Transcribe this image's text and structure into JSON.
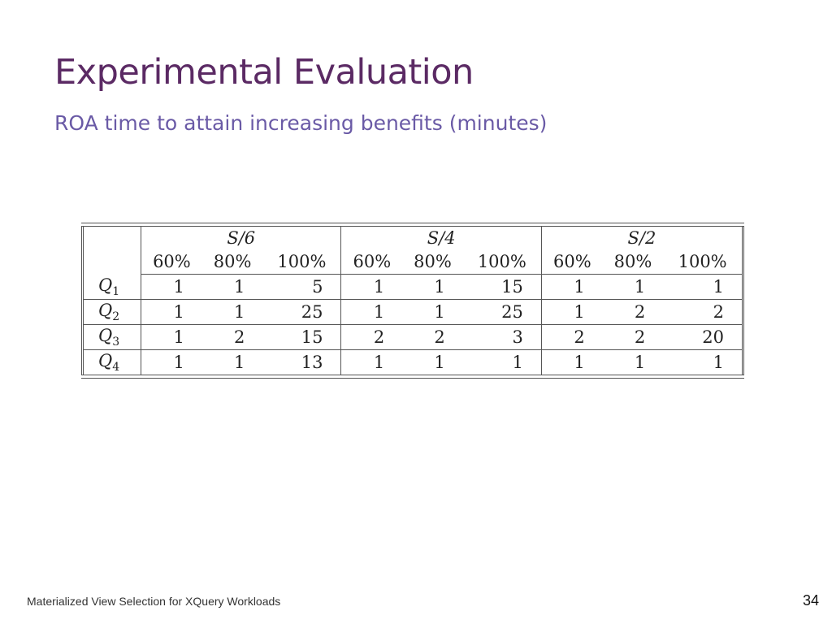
{
  "slide": {
    "title": "Experimental Evaluation",
    "subtitle": "ROA time to attain increasing benefits (minutes)",
    "footer": "Materialized View Selection for XQuery Workloads",
    "page_number": "34"
  },
  "table": {
    "groups": [
      "S/6",
      "S/4",
      "S/2"
    ],
    "percentages": [
      "60%",
      "80%",
      "100%",
      "60%",
      "80%",
      "100%",
      "60%",
      "80%",
      "100%"
    ],
    "rows": [
      {
        "label": "Q",
        "sub": "1",
        "values": [
          "1",
          "1",
          "5",
          "1",
          "1",
          "15",
          "1",
          "1",
          "1"
        ]
      },
      {
        "label": "Q",
        "sub": "2",
        "values": [
          "1",
          "1",
          "25",
          "1",
          "1",
          "25",
          "1",
          "2",
          "2"
        ]
      },
      {
        "label": "Q",
        "sub": "3",
        "values": [
          "1",
          "2",
          "15",
          "2",
          "2",
          "3",
          "2",
          "2",
          "20"
        ]
      },
      {
        "label": "Q",
        "sub": "4",
        "values": [
          "1",
          "1",
          "13",
          "1",
          "1",
          "1",
          "1",
          "1",
          "1"
        ]
      }
    ]
  }
}
